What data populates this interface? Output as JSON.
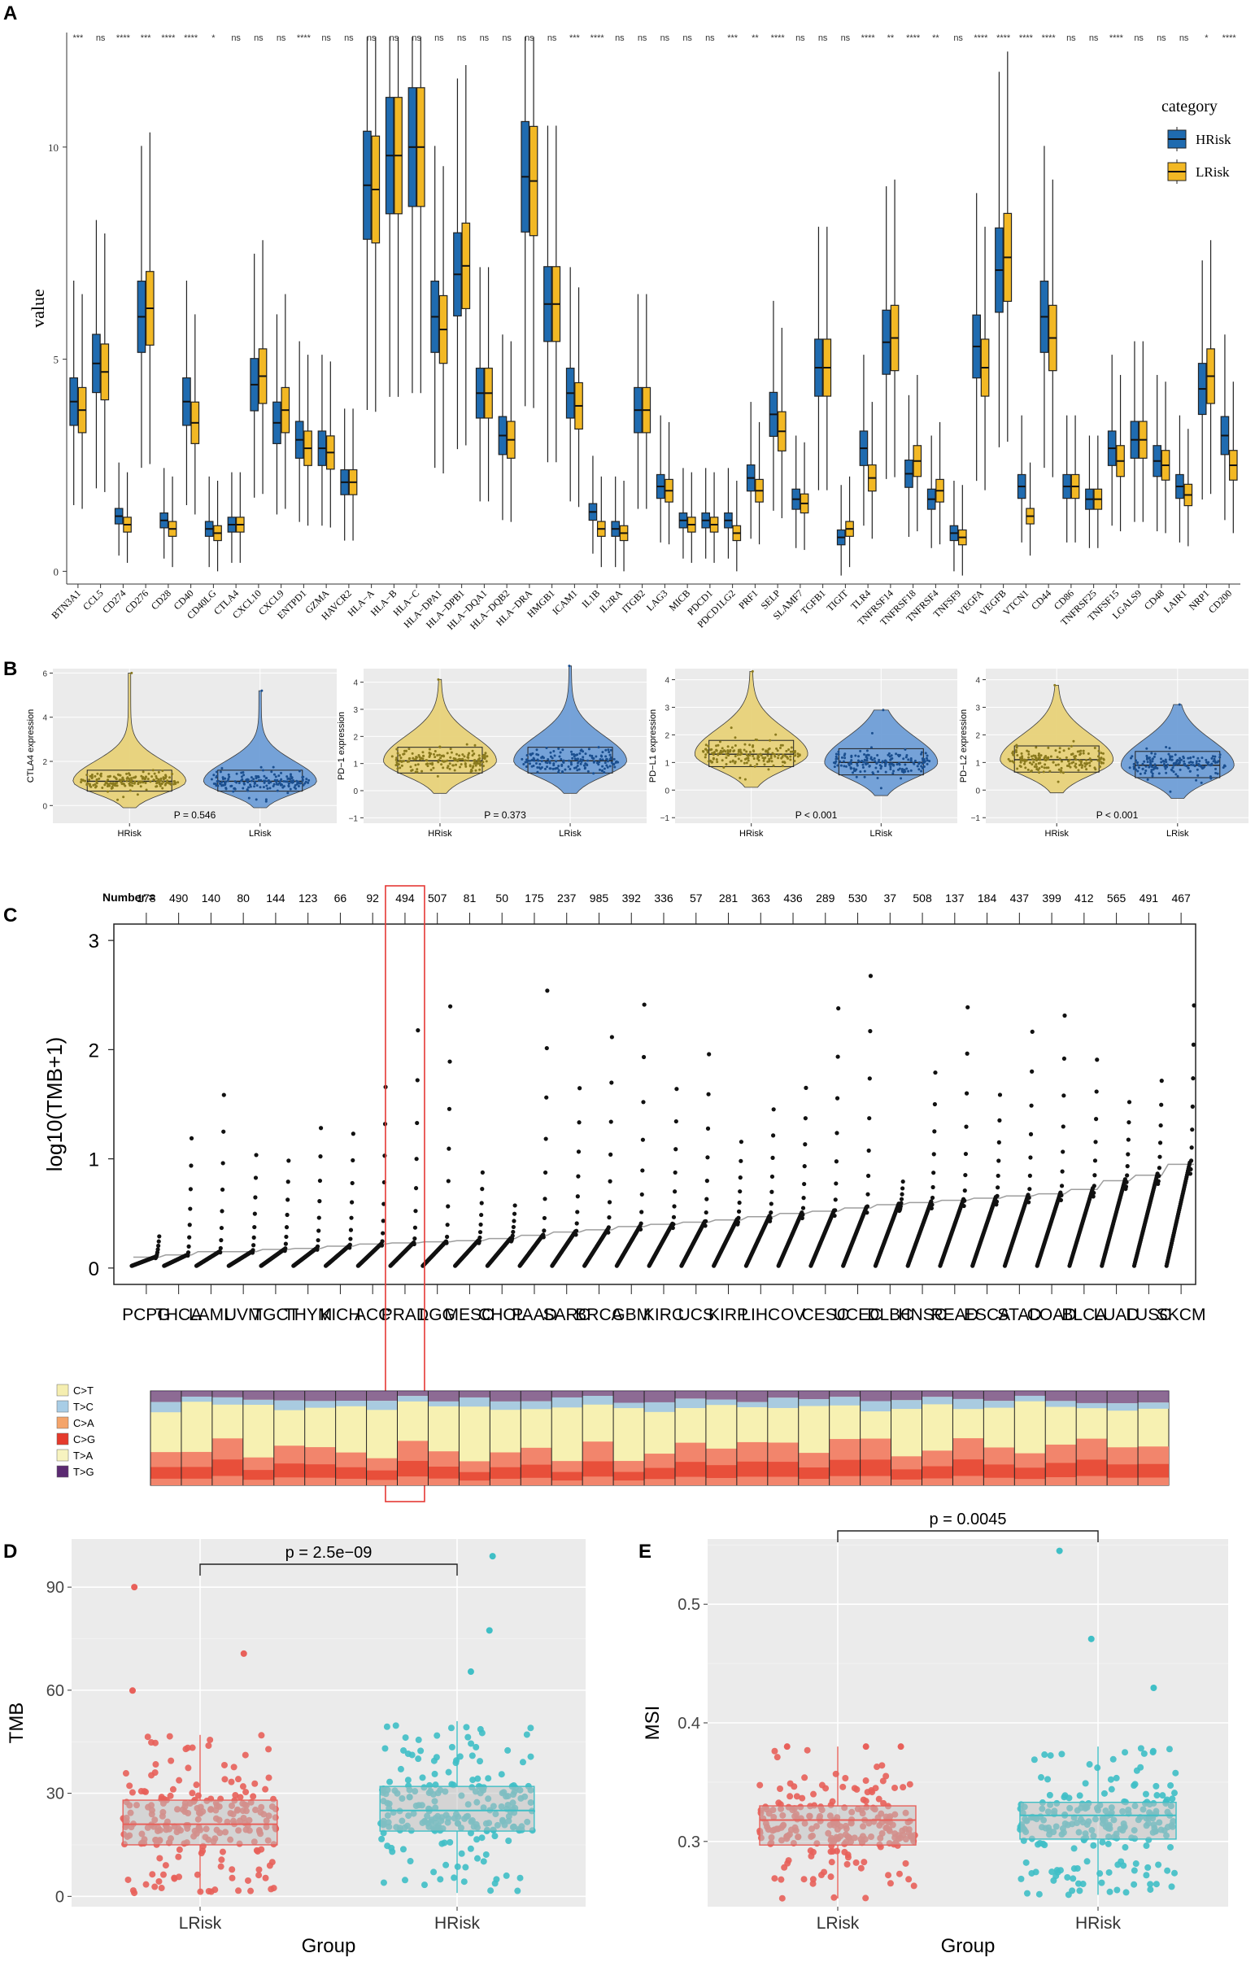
{
  "panels": {
    "A": "A",
    "B": "B",
    "C": "C",
    "D": "D",
    "E": "E"
  },
  "colors": {
    "hrisk_blue": "#1f6bb0",
    "lrisk_yellow": "#f2b824",
    "violin_yellow": "#e8d27a",
    "violin_blue": "#6f9fd8",
    "d_red": "#e8605a",
    "d_teal": "#3fbfc6",
    "panel_bg": "#ebebeb",
    "c_box": "#e53935"
  },
  "chart_data": [
    {
      "panel": "A",
      "type": "box",
      "title": "",
      "xlabel": "",
      "ylabel": "value",
      "ylim": [
        -0.3,
        12.7
      ],
      "yticks": [
        "0",
        "5",
        "10"
      ],
      "legend": {
        "title": "category",
        "position": "right",
        "items": [
          "HRisk",
          "LRisk"
        ]
      },
      "genes": [
        "BTN3A1",
        "CCL5",
        "CD274",
        "CD276",
        "CD28",
        "CD40",
        "CD40LG",
        "CTLA4",
        "CXCL10",
        "CXCL9",
        "ENTPD1",
        "GZMA",
        "HAVCR2",
        "HLA−A",
        "HLA−B",
        "HLA−C",
        "HLA−DPA1",
        "HLA−DPB1",
        "HLA−DQA1",
        "HLA−DQB2",
        "HLA−DRA",
        "HMGB1",
        "ICAM1",
        "IL1B",
        "IL2RA",
        "ITGB2",
        "LAG3",
        "MICB",
        "PDCD1",
        "PDCD1LG2",
        "PRF1",
        "SELP",
        "SLAMF7",
        "TGFB1",
        "TIGIT",
        "TLR4",
        "TNFRSF14",
        "TNFRSF18",
        "TNFRSF4",
        "TNFSF9",
        "VEGFA",
        "VEGFB",
        "VTCN1",
        "CD44",
        "CD86",
        "TNFRSF25",
        "TNFSF15",
        "LGALS9",
        "CD48",
        "LAIR1",
        "NRP1",
        "CD200"
      ],
      "significance": [
        "***",
        "ns",
        "****",
        "***",
        "****",
        "****",
        "*",
        "ns",
        "ns",
        "ns",
        "****",
        "ns",
        "ns",
        "ns",
        "ns",
        "ns",
        "ns",
        "ns",
        "ns",
        "ns",
        "ns",
        "ns",
        "***",
        "****",
        "ns",
        "ns",
        "ns",
        "ns",
        "ns",
        "***",
        "**",
        "****",
        "ns",
        "ns",
        "ns",
        "****",
        "**",
        "****",
        "**",
        "ns",
        "****",
        "****",
        "****",
        "****",
        "ns",
        "ns",
        "****",
        "ns",
        "ns",
        "ns",
        "*",
        "****"
      ],
      "medians_hrisk": [
        4.0,
        4.9,
        1.3,
        6.0,
        1.2,
        4.0,
        1.0,
        1.1,
        4.4,
        3.5,
        3.1,
        2.9,
        2.1,
        9.1,
        9.8,
        10.0,
        6.0,
        7.0,
        4.2,
        3.2,
        9.3,
        6.3,
        4.2,
        1.4,
        1.0,
        3.8,
        2.0,
        1.2,
        1.2,
        1.2,
        2.2,
        3.7,
        1.7,
        4.8,
        0.8,
        2.9,
        5.4,
        2.3,
        1.7,
        0.9,
        5.3,
        7.1,
        2.0,
        6.0,
        2.0,
        1.7,
        2.9,
        3.1,
        2.6,
        2.0,
        4.3,
        3.2
      ],
      "medians_lrisk": [
        3.8,
        4.7,
        1.1,
        6.2,
        1.0,
        3.5,
        0.9,
        1.1,
        4.6,
        3.8,
        2.9,
        2.8,
        2.1,
        9.0,
        9.8,
        10.0,
        5.7,
        7.2,
        4.2,
        3.1,
        9.2,
        6.3,
        3.9,
        1.0,
        0.9,
        3.8,
        1.9,
        1.1,
        1.1,
        0.9,
        1.9,
        3.3,
        1.6,
        4.8,
        1.0,
        2.2,
        5.5,
        2.6,
        1.9,
        0.8,
        4.8,
        7.4,
        1.3,
        5.5,
        2.0,
        1.7,
        2.6,
        3.1,
        2.5,
        1.8,
        4.6,
        2.5
      ]
    },
    {
      "panel": "B",
      "type": "violin",
      "plots": [
        {
          "ylabel": "CTLA4 expression",
          "yticks": [
            "0",
            "2",
            "4",
            "6"
          ],
          "ylim": [
            -0.8,
            6.2
          ],
          "categories": [
            "HRisk",
            "LRisk"
          ],
          "medians": [
            1.1,
            1.1
          ],
          "max": [
            6.0,
            5.2
          ],
          "pvalue": "P = 0.546"
        },
        {
          "ylabel": "PD−1 expression",
          "yticks": [
            "−1",
            "0",
            "1",
            "2",
            "3",
            "4"
          ],
          "ylim": [
            -1.2,
            4.5
          ],
          "categories": [
            "HRisk",
            "LRisk"
          ],
          "medians": [
            1.1,
            1.1
          ],
          "max": [
            4.1,
            4.6
          ],
          "pvalue": "P = 0.373"
        },
        {
          "ylabel": "PD−L1 expression",
          "yticks": [
            "−1",
            "0",
            "1",
            "2",
            "3",
            "4"
          ],
          "ylim": [
            -1.2,
            4.4
          ],
          "categories": [
            "HRisk",
            "LRisk"
          ],
          "medians": [
            1.3,
            1.0
          ],
          "max": [
            4.3,
            2.9
          ],
          "pvalue": "P < 0.001"
        },
        {
          "ylabel": "PD−L2 expression",
          "yticks": [
            "−1",
            "0",
            "1",
            "2",
            "3",
            "4"
          ],
          "ylim": [
            -1.2,
            4.4
          ],
          "categories": [
            "HRisk",
            "LRisk"
          ],
          "medians": [
            1.1,
            0.9
          ],
          "max": [
            3.8,
            3.1
          ],
          "pvalue": "P < 0.001"
        }
      ]
    },
    {
      "panel": "C",
      "type": "scatter",
      "ylabel": "log10(TMB+1)",
      "ylim": [
        -0.15,
        3.15
      ],
      "yticks": [
        "0",
        "1",
        "2",
        "3"
      ],
      "number_label": "Number =",
      "cancers": [
        "PCPG",
        "THCA",
        "LAML",
        "UVM",
        "TGCT",
        "THYM",
        "KICH",
        "ACC",
        "PRAD",
        "LGG",
        "MESO",
        "CHOL",
        "PAAD",
        "SARC",
        "BRCA",
        "GBM",
        "KIRC",
        "UCS",
        "KIRP",
        "LIHC",
        "OV",
        "CESC",
        "UCEC",
        "DLBC",
        "HNSC",
        "READ",
        "ESCA",
        "STAD",
        "COAD",
        "BLCA",
        "LUAD",
        "LUSC",
        "SKCM"
      ],
      "counts": [
        "178",
        "490",
        "140",
        "80",
        "144",
        "123",
        "66",
        "92",
        "494",
        "507",
        "81",
        "50",
        "175",
        "237",
        "985",
        "392",
        "336",
        "57",
        "281",
        "363",
        "436",
        "289",
        "530",
        "37",
        "508",
        "137",
        "184",
        "437",
        "399",
        "412",
        "565",
        "491",
        "467"
      ],
      "medians": [
        0.1,
        0.12,
        0.15,
        0.15,
        0.17,
        0.18,
        0.2,
        0.22,
        0.23,
        0.24,
        0.25,
        0.27,
        0.3,
        0.33,
        0.35,
        0.38,
        0.4,
        0.42,
        0.44,
        0.47,
        0.5,
        0.52,
        0.55,
        0.58,
        0.6,
        0.62,
        0.64,
        0.66,
        0.68,
        0.72,
        0.8,
        0.85,
        0.95
      ],
      "maxima": [
        0.3,
        1.2,
        1.6,
        1.05,
        1.0,
        1.3,
        1.25,
        1.68,
        2.2,
        2.42,
        0.9,
        0.6,
        2.57,
        1.68,
        2.15,
        2.45,
        1.68,
        2.0,
        1.2,
        1.5,
        1.7,
        2.43,
        2.73,
        0.85,
        1.85,
        2.45,
        1.65,
        2.23,
        2.38,
        1.98,
        1.6,
        1.8,
        2.5
      ],
      "highlight": "PRAD",
      "mutation_legend": [
        "C>T",
        "T>C",
        "C>A",
        "C>G",
        "T>A",
        "T>G"
      ]
    },
    {
      "panel": "D",
      "type": "box",
      "xlabel": "Group",
      "ylabel": "TMB",
      "categories": [
        "LRisk",
        "HRisk"
      ],
      "yticks": [
        "0",
        "30",
        "60",
        "90"
      ],
      "ylim": [
        -3,
        104
      ],
      "q1": [
        15,
        19
      ],
      "median": [
        21,
        25
      ],
      "q3": [
        28,
        32
      ],
      "whisker_low": [
        1,
        1
      ],
      "whisker_high": [
        47,
        51
      ],
      "outlier_max": [
        90,
        99
      ],
      "pvalue": "p = 2.5e−09"
    },
    {
      "panel": "E",
      "type": "box",
      "xlabel": "Group",
      "ylabel": "MSI",
      "categories": [
        "LRisk",
        "HRisk"
      ],
      "yticks": [
        "0.3",
        "0.4",
        "0.5"
      ],
      "ylim": [
        0.245,
        0.555
      ],
      "q1": [
        0.297,
        0.302
      ],
      "median": [
        0.318,
        0.322
      ],
      "q3": [
        0.33,
        0.333
      ],
      "whisker_low": [
        0.252,
        0.255
      ],
      "whisker_high": [
        0.38,
        0.38
      ],
      "outlier_max": [
        0.38,
        0.545
      ],
      "pvalue": "p = 0.0045"
    }
  ]
}
